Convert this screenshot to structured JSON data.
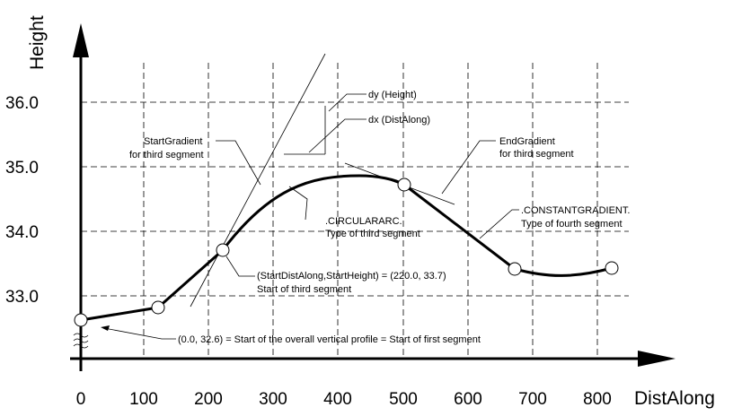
{
  "axes": {
    "x_title": "DistAlong",
    "y_title": "Height",
    "x_ticks": [
      "0",
      "100",
      "200",
      "300",
      "400",
      "500",
      "600",
      "700",
      "800"
    ],
    "y_ticks": [
      "36.0",
      "35.0",
      "34.0",
      "33.0"
    ]
  },
  "annotations": {
    "dy": "dy (Height)",
    "dx": "dx (DistAlong)",
    "start_gradient_1": "StartGradient",
    "start_gradient_2": "for third segment",
    "end_gradient_1": "EndGradient",
    "end_gradient_2": "for third segment",
    "circular_arc_1": ".CIRCULARARC.",
    "circular_arc_2": "Type of third segment",
    "constant_gradient_1": ".CONSTANTGRADIENT.",
    "constant_gradient_2": "Type of fourth segment",
    "start_third_1": "(StartDistAlong,StartHeight) = (220.0, 33.7)",
    "start_third_2": "Start of third segment",
    "start_profile": "(0.0, 32.6) = Start of the overall vertical profile = Start of first segment"
  },
  "profile_points": [
    {
      "dist": 0,
      "height": 32.6
    },
    {
      "dist": 120,
      "height": 32.8
    },
    {
      "dist": 220,
      "height": 33.7
    },
    {
      "dist": 500,
      "height": 34.7
    },
    {
      "dist": 670,
      "height": 33.4
    },
    {
      "dist": 820,
      "height": 33.4
    }
  ]
}
